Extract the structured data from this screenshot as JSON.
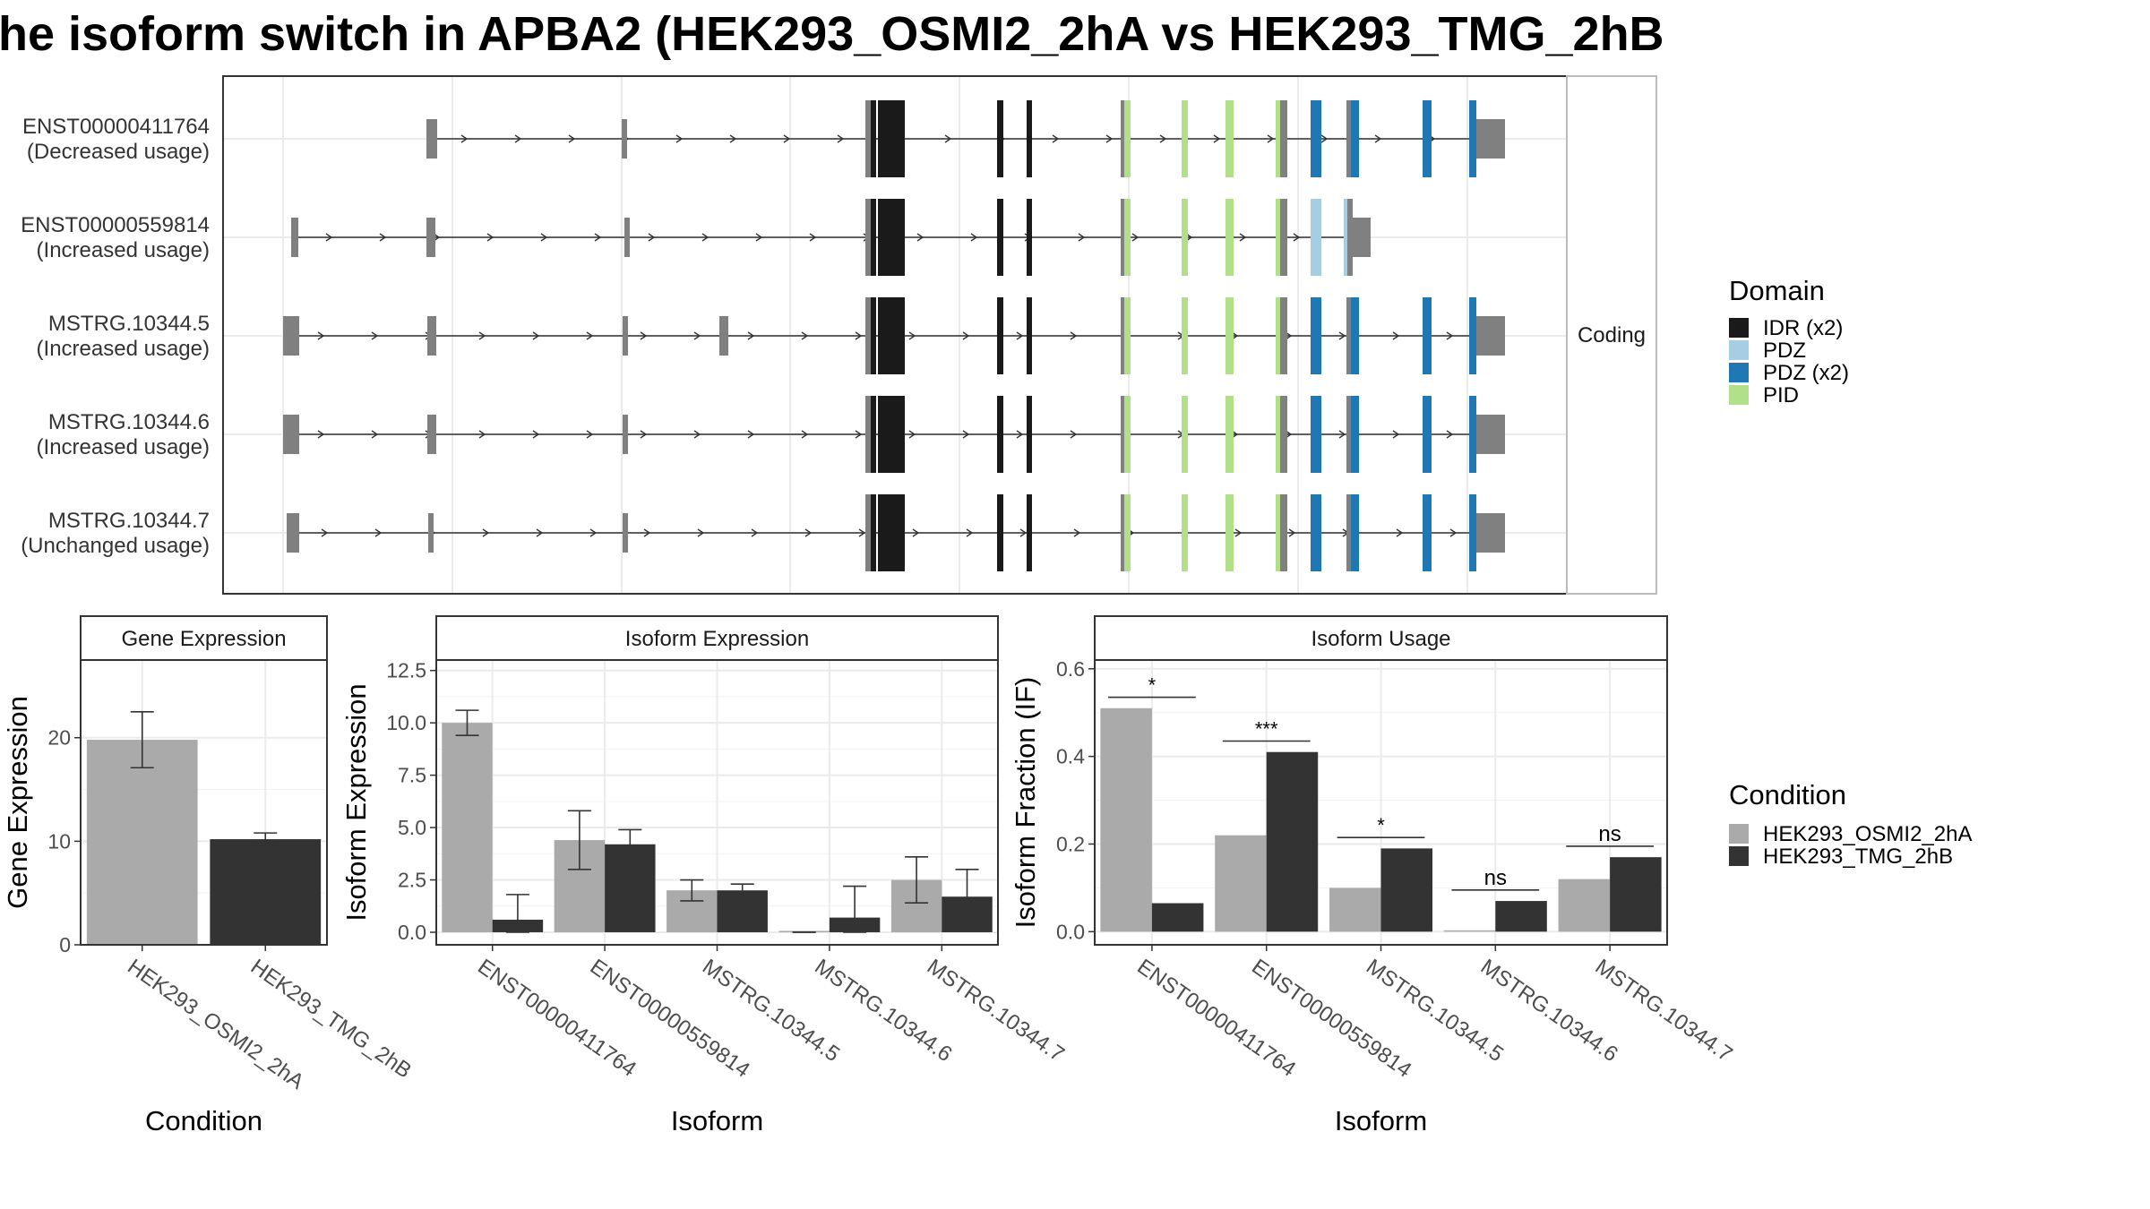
{
  "title": "he isoform switch in APBA2 (HEK293_OSMI2_2hA vs HEK293_TMG_2hB",
  "structure": {
    "strip_label": "Coding",
    "transcripts": [
      {
        "id": "ENST00000411764",
        "usage": "(Decreased usage)"
      },
      {
        "id": "ENST00000559814",
        "usage": "(Increased usage)"
      },
      {
        "id": "MSTRG.10344.5",
        "usage": "(Increased usage)"
      },
      {
        "id": "MSTRG.10344.6",
        "usage": "(Increased usage)"
      },
      {
        "id": "MSTRG.10344.7",
        "usage": "(Unchanged usage)"
      }
    ],
    "domain_legend": {
      "title": "Domain",
      "items": [
        {
          "label": "IDR (x2)",
          "color": "#1a1a1a"
        },
        {
          "label": "PDZ",
          "color": "#a6cee3"
        },
        {
          "label": "PDZ (x2)",
          "color": "#1f78b4"
        },
        {
          "label": "PID",
          "color": "#b2df8a"
        }
      ]
    }
  },
  "condition_legend": {
    "title": "Condition",
    "items": [
      {
        "label": "HEK293_OSMI2_2hA",
        "color": "#aaaaaa"
      },
      {
        "label": "HEK293_TMG_2hB",
        "color": "#333333"
      }
    ]
  },
  "chart_data": [
    {
      "type": "bar",
      "title": "Gene Expression",
      "xlabel": "Condition",
      "ylabel": "Gene Expression",
      "categories": [
        "HEK293_OSMI2_2hA",
        "HEK293_TMG_2hB"
      ],
      "values": [
        19.8,
        10.2
      ],
      "error_low": [
        17.1,
        9.6
      ],
      "error_high": [
        22.5,
        10.8
      ],
      "colors": [
        "#aaaaaa",
        "#333333"
      ],
      "ylim": [
        0,
        27.5
      ],
      "yticks": [
        0,
        10,
        20
      ],
      "grid": true
    },
    {
      "type": "bar",
      "title": "Isoform Expression",
      "xlabel": "Isoform",
      "ylabel": "Isoform Expression",
      "categories": [
        "ENST00000411764",
        "ENST00000559814",
        "MSTRG.10344.5",
        "MSTRG.10344.6",
        "MSTRG.10344.7"
      ],
      "series": [
        {
          "name": "HEK293_OSMI2_2hA",
          "color": "#aaaaaa",
          "values": [
            10.0,
            4.4,
            2.0,
            0.0,
            2.5
          ],
          "error_low": [
            9.4,
            3.0,
            1.5,
            0.0,
            1.4
          ],
          "error_high": [
            10.6,
            5.8,
            2.5,
            0.0,
            3.6
          ]
        },
        {
          "name": "HEK293_TMG_2hB",
          "color": "#333333",
          "values": [
            0.6,
            4.2,
            2.0,
            0.7,
            1.7
          ],
          "error_low": [
            0.0,
            3.5,
            1.7,
            0.0,
            0.4
          ],
          "error_high": [
            1.8,
            4.9,
            2.3,
            2.2,
            3.0
          ]
        }
      ],
      "ylim": [
        -0.6,
        13.0
      ],
      "yticks": [
        0.0,
        2.5,
        5.0,
        7.5,
        10.0,
        12.5
      ],
      "grid": true
    },
    {
      "type": "bar",
      "title": "Isoform Usage",
      "xlabel": "Isoform",
      "ylabel": "Isoform Fraction (IF)",
      "categories": [
        "ENST00000411764",
        "ENST00000559814",
        "MSTRG.10344.5",
        "MSTRG.10344.6",
        "MSTRG.10344.7"
      ],
      "series": [
        {
          "name": "HEK293_OSMI2_2hA",
          "color": "#aaaaaa",
          "values": [
            0.51,
            0.22,
            0.1,
            0.0,
            0.12
          ]
        },
        {
          "name": "HEK293_TMG_2hB",
          "color": "#333333",
          "values": [
            0.065,
            0.41,
            0.19,
            0.07,
            0.17
          ]
        }
      ],
      "significance": [
        "*",
        "***",
        "*",
        "ns",
        "ns"
      ],
      "ylim": [
        -0.03,
        0.62
      ],
      "yticks": [
        0.0,
        0.2,
        0.4,
        0.6
      ],
      "grid": true
    }
  ]
}
